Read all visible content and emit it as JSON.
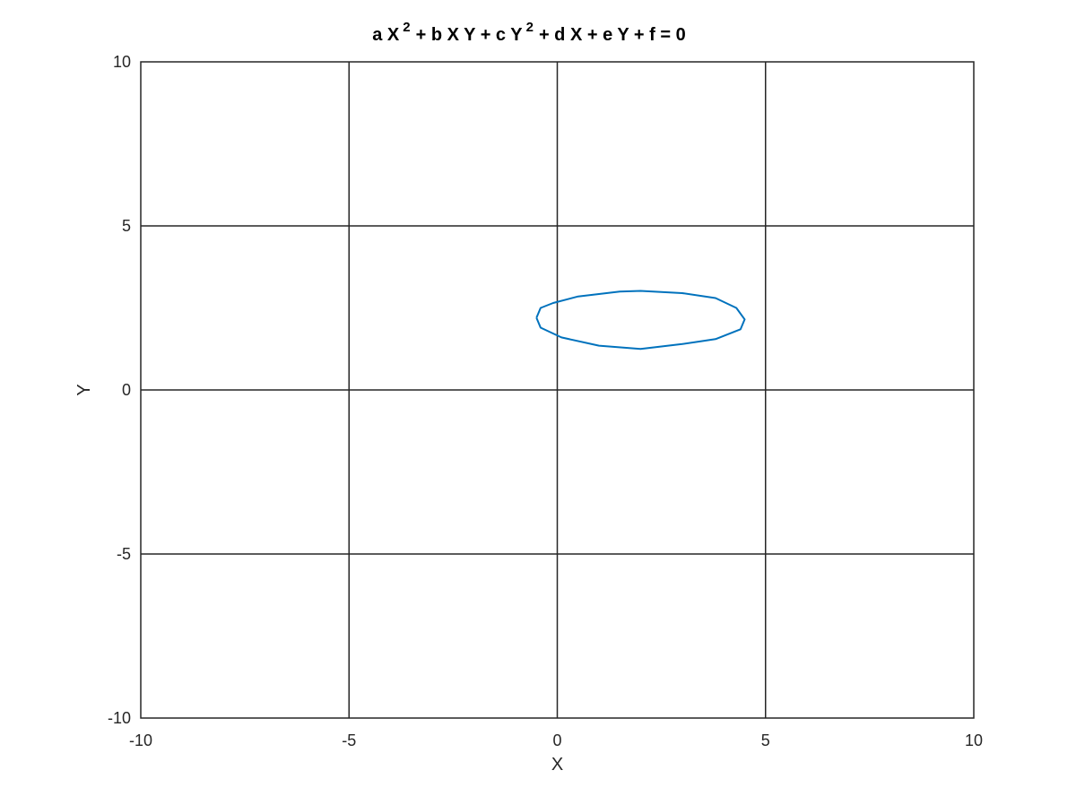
{
  "chart_data": {
    "type": "line",
    "title": {
      "parts": [
        {
          "text": "a X",
          "sup": false
        },
        {
          "text": "2",
          "sup": true
        },
        {
          "text": "+ b X Y + c Y",
          "sup": false
        },
        {
          "text": "2",
          "sup": true
        },
        {
          "text": "+ d X + e Y + f = 0",
          "sup": false
        }
      ]
    },
    "xlabel": "X",
    "ylabel": "Y",
    "xlim": [
      -10,
      10
    ],
    "ylim": [
      -10,
      10
    ],
    "xticks": [
      -10,
      -5,
      0,
      5,
      10
    ],
    "yticks": [
      -10,
      -5,
      0,
      5,
      10
    ],
    "xtick_labels": [
      "-10",
      "-5",
      "0",
      "5",
      "10"
    ],
    "ytick_labels": [
      "-10",
      "-5",
      "0",
      "5",
      "10"
    ],
    "grid": true,
    "box": true,
    "series": [
      {
        "color": "#0072BD",
        "x": [
          -0.5,
          -0.4,
          -0.1,
          0.5,
          1.5,
          2.0,
          3.0,
          3.8,
          4.3,
          4.5,
          4.4,
          3.8,
          3.0,
          2.0,
          1.0,
          0.1,
          -0.4,
          -0.5
        ],
        "y": [
          2.2,
          2.5,
          2.65,
          2.85,
          3.0,
          3.02,
          2.95,
          2.8,
          2.5,
          2.15,
          1.85,
          1.55,
          1.4,
          1.25,
          1.35,
          1.6,
          1.9,
          2.2
        ]
      }
    ]
  }
}
